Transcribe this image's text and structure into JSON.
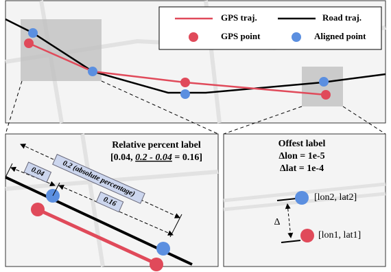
{
  "legend": {
    "items": [
      "GPS traj.",
      "Road traj.",
      "GPS point",
      "Aligned point"
    ]
  },
  "relative_panel": {
    "title": "Relative percent label",
    "formula": [
      "[0.04, ",
      "0.2 - 0.04",
      " = 0.16]"
    ],
    "labels": [
      "0.04",
      "0.2 (absolute percentage)",
      "0.16"
    ]
  },
  "offset_panel": {
    "title": "Offest label",
    "lines": [
      "Δlon = 1e-5",
      "Δlat = 1e-4"
    ],
    "points": [
      "[lon2, lat2]",
      "[lon1, lat1]"
    ],
    "delta": "Δ"
  }
}
